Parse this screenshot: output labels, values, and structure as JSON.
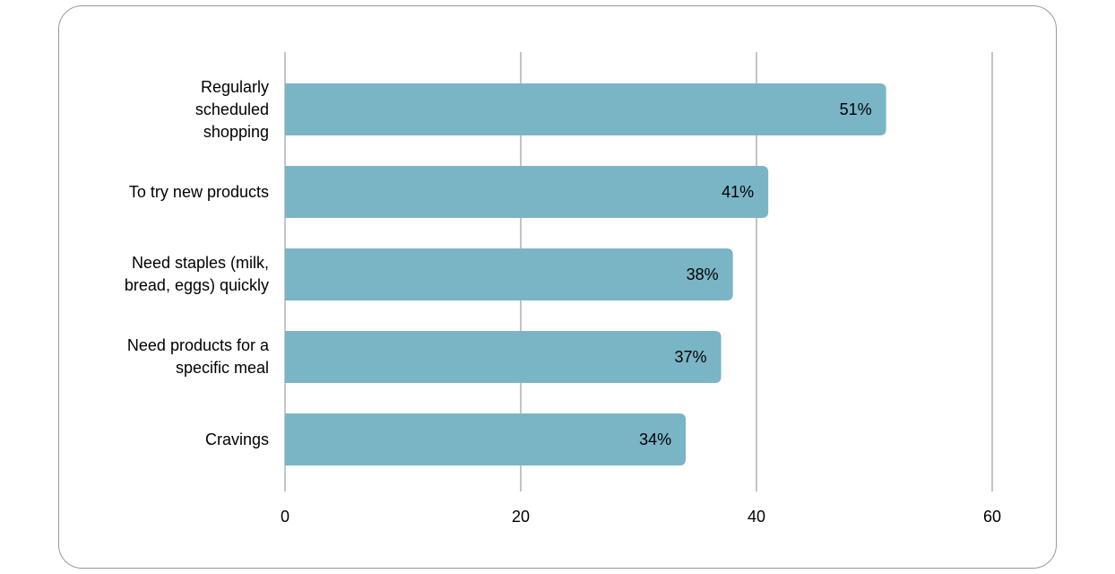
{
  "chart_data": {
    "type": "bar",
    "orientation": "horizontal",
    "categories": [
      "Regularly scheduled shopping",
      "To try new products",
      "Need staples (milk, bread, eggs) quickly",
      "Need products for a specific meal",
      "Cravings"
    ],
    "values": [
      51,
      41,
      38,
      37,
      34
    ],
    "value_labels": [
      "51%",
      "41%",
      "38%",
      "37%",
      "34%"
    ],
    "color": "#7ab5c6",
    "xlim": [
      0,
      60
    ],
    "xticks": [
      0,
      20,
      40,
      60
    ],
    "grid": true
  }
}
